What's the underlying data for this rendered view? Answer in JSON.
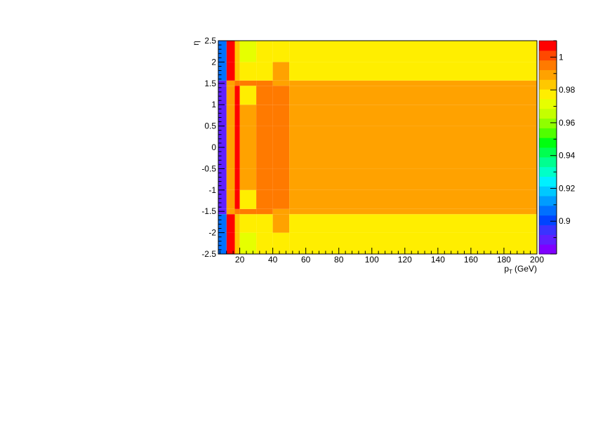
{
  "chart_data": {
    "type": "heatmap",
    "title": "",
    "xlabel": "p_T (GeV)",
    "xlabel_main": "p",
    "xlabel_sub": "T",
    "xlabel_unit": "(GeV)",
    "ylabel": "η",
    "xlim": [
      7,
      200
    ],
    "ylim": [
      -2.5,
      2.5
    ],
    "zlim": [
      0.88,
      1.01
    ],
    "x_edges": [
      7,
      12,
      17,
      20,
      30,
      40,
      50,
      200
    ],
    "y_edges": [
      -2.5,
      -2.0,
      -1.566,
      -1.444,
      -1.0,
      -0.5,
      0.0,
      0.5,
      1.0,
      1.444,
      1.566,
      2.0,
      2.5
    ],
    "z": [
      [
        0.905,
        1.005,
        0.985,
        0.97,
        0.98,
        0.98,
        0.975
      ],
      [
        0.905,
        1.005,
        0.985,
        0.975,
        0.98,
        0.99,
        0.98
      ],
      [
        0.89,
        0.99,
        0.995,
        0.995,
        0.995,
        0.99,
        0.99
      ],
      [
        0.89,
        0.99,
        1.005,
        0.98,
        0.995,
        0.995,
        0.99
      ],
      [
        0.89,
        0.99,
        1.005,
        0.99,
        0.995,
        0.995,
        0.99
      ],
      [
        0.89,
        0.99,
        1.005,
        0.99,
        0.995,
        0.995,
        0.99
      ],
      [
        0.89,
        0.99,
        1.005,
        0.99,
        0.995,
        0.995,
        0.99
      ],
      [
        0.89,
        0.99,
        1.005,
        0.99,
        0.995,
        0.995,
        0.99
      ],
      [
        0.89,
        0.99,
        1.005,
        0.98,
        0.995,
        0.995,
        0.99
      ],
      [
        0.89,
        0.99,
        0.995,
        0.995,
        0.995,
        0.99,
        0.99
      ],
      [
        0.905,
        1.005,
        0.985,
        0.975,
        0.98,
        0.99,
        0.98
      ],
      [
        0.905,
        1.005,
        0.985,
        0.97,
        0.98,
        0.98,
        0.975
      ]
    ],
    "x_major_ticks": [
      20,
      40,
      60,
      80,
      100,
      120,
      140,
      160,
      180,
      200
    ],
    "x_tick_labels": [
      "20",
      "40",
      "60",
      "80",
      "100",
      "120",
      "140",
      "160",
      "180",
      "200"
    ],
    "y_major_ticks": [
      -2.5,
      -2.0,
      -1.5,
      -1.0,
      -0.5,
      0.0,
      0.5,
      1.0,
      1.5,
      2.0,
      2.5
    ],
    "y_tick_labels": [
      "-2.5",
      "-2",
      "-1.5",
      "-1",
      "-0.5",
      "0",
      "0.5",
      "1",
      "1.5",
      "2",
      "2.5"
    ],
    "z_ticks": [
      0.9,
      0.92,
      0.94,
      0.96,
      0.98,
      1.0
    ],
    "z_tick_labels": [
      "0.9",
      "0.92",
      "0.94",
      "0.96",
      "0.98",
      "1"
    ],
    "palette": [
      "#7f00ff",
      "#5f1fff",
      "#3a33ff",
      "#0044ff",
      "#0070ff",
      "#009cff",
      "#00c8ff",
      "#00f0ff",
      "#00ffc8",
      "#00ff90",
      "#00ff50",
      "#00ff10",
      "#50ff00",
      "#8fff00",
      "#c4ff00",
      "#e6ff00",
      "#ffee00",
      "#ffc800",
      "#ffa200",
      "#ff7a00",
      "#ff4800",
      "#ff0000"
    ],
    "grid": false,
    "legend": "color bar on the right"
  }
}
